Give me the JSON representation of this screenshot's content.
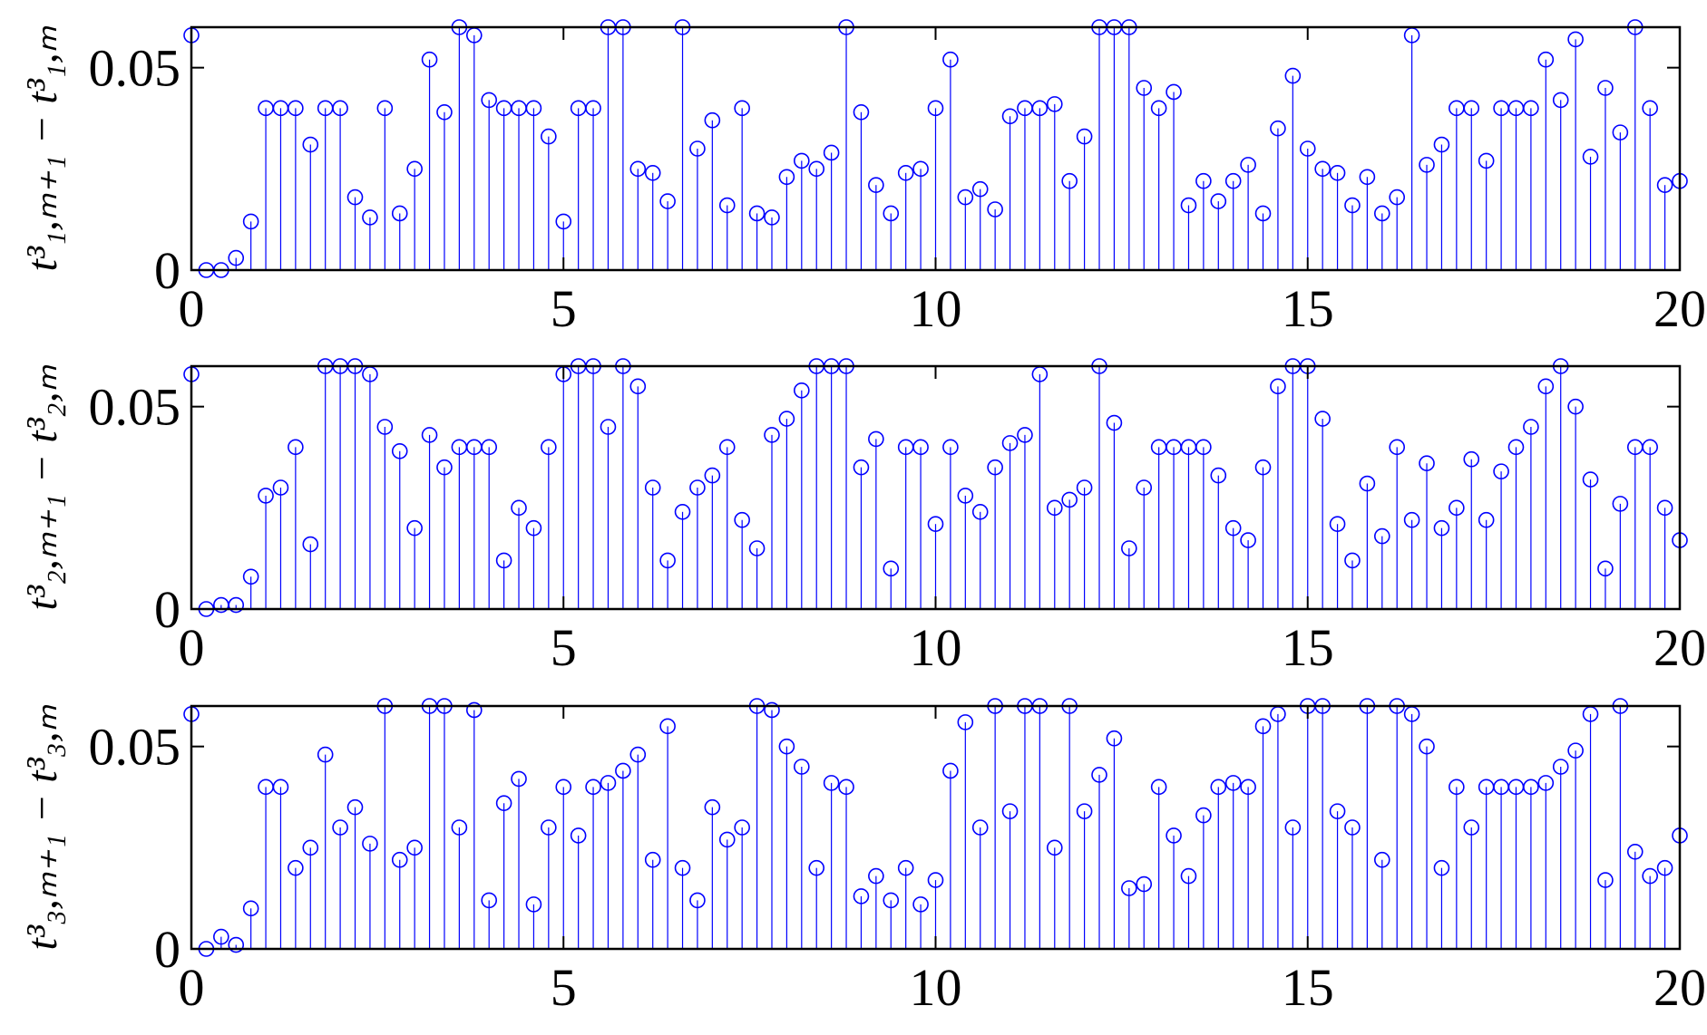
{
  "chart_data": [
    {
      "type": "stem",
      "ylabel": "t³₁,ₘ₊₁ − t³₁,ₘ",
      "color": "#0000ff",
      "xlim": [
        0,
        20
      ],
      "ylim": [
        0,
        0.06
      ],
      "xticks": [
        0,
        5,
        10,
        15,
        20
      ],
      "yticks": [
        0,
        0.05
      ],
      "x": [
        0,
        0.2,
        0.4,
        0.6,
        0.8,
        1,
        1.2,
        1.4,
        1.6,
        1.8,
        2,
        2.2,
        2.4,
        2.6,
        2.8,
        3,
        3.2,
        3.4,
        3.6,
        3.8,
        4,
        4.2,
        4.4,
        4.6,
        4.8,
        5,
        5.2,
        5.4,
        5.6,
        5.8,
        6,
        6.2,
        6.4,
        6.6,
        6.8,
        7,
        7.2,
        7.4,
        7.6,
        7.8,
        8,
        8.2,
        8.4,
        8.6,
        8.8,
        9,
        9.2,
        9.4,
        9.6,
        9.8,
        10,
        10.2,
        10.4,
        10.6,
        10.8,
        11,
        11.2,
        11.4,
        11.6,
        11.8,
        12,
        12.2,
        12.4,
        12.6,
        12.8,
        13,
        13.2,
        13.4,
        13.6,
        13.8,
        14,
        14.2,
        14.4,
        14.6,
        14.8,
        15,
        15.2,
        15.4,
        15.6,
        15.8,
        16,
        16.2,
        16.4,
        16.6,
        16.8,
        17,
        17.2,
        17.4,
        17.6,
        17.8,
        18,
        18.2,
        18.4,
        18.6,
        18.8,
        19,
        19.2,
        19.4,
        19.6,
        19.8,
        20
      ],
      "values": [
        0.058,
        0,
        0,
        0.003,
        0.012,
        0.04,
        0.04,
        0.04,
        0.031,
        0.04,
        0.04,
        0.018,
        0.013,
        0.04,
        0.014,
        0.025,
        0.052,
        0.039,
        0.06,
        0.058,
        0.042,
        0.04,
        0.04,
        0.04,
        0.033,
        0.012,
        0.04,
        0.04,
        0.06,
        0.06,
        0.025,
        0.024,
        0.017,
        0.06,
        0.03,
        0.037,
        0.016,
        0.04,
        0.014,
        0.013,
        0.023,
        0.027,
        0.025,
        0.029,
        0.06,
        0.039,
        0.021,
        0.014,
        0.024,
        0.025,
        0.04,
        0.052,
        0.018,
        0.02,
        0.015,
        0.038,
        0.04,
        0.04,
        0.041,
        0.022,
        0.033,
        0.06,
        0.06,
        0.06,
        0.045,
        0.04,
        0.044,
        0.016,
        0.022,
        0.017,
        0.022,
        0.026,
        0.014,
        0.035,
        0.048,
        0.03,
        0.025,
        0.024,
        0.016,
        0.023,
        0.014,
        0.018,
        0.058,
        0.026,
        0.031,
        0.04,
        0.04,
        0.027,
        0.04,
        0.04,
        0.04,
        0.052,
        0.042,
        0.057,
        0.028,
        0.045,
        0.034,
        0.06,
        0.04,
        0.021,
        0.022
      ]
    },
    {
      "type": "stem",
      "ylabel": "t³₂,ₘ₊₁ − t³₂,ₘ",
      "color": "#0000ff",
      "xlim": [
        0,
        20
      ],
      "ylim": [
        0,
        0.06
      ],
      "xticks": [
        0,
        5,
        10,
        15,
        20
      ],
      "yticks": [
        0,
        0.05
      ],
      "x": [
        0,
        0.2,
        0.4,
        0.6,
        0.8,
        1,
        1.2,
        1.4,
        1.6,
        1.8,
        2,
        2.2,
        2.4,
        2.6,
        2.8,
        3,
        3.2,
        3.4,
        3.6,
        3.8,
        4,
        4.2,
        4.4,
        4.6,
        4.8,
        5,
        5.2,
        5.4,
        5.6,
        5.8,
        6,
        6.2,
        6.4,
        6.6,
        6.8,
        7,
        7.2,
        7.4,
        7.6,
        7.8,
        8,
        8.2,
        8.4,
        8.6,
        8.8,
        9,
        9.2,
        9.4,
        9.6,
        9.8,
        10,
        10.2,
        10.4,
        10.6,
        10.8,
        11,
        11.2,
        11.4,
        11.6,
        11.8,
        12,
        12.2,
        12.4,
        12.6,
        12.8,
        13,
        13.2,
        13.4,
        13.6,
        13.8,
        14,
        14.2,
        14.4,
        14.6,
        14.8,
        15,
        15.2,
        15.4,
        15.6,
        15.8,
        16,
        16.2,
        16.4,
        16.6,
        16.8,
        17,
        17.2,
        17.4,
        17.6,
        17.8,
        18,
        18.2,
        18.4,
        18.6,
        18.8,
        19,
        19.2,
        19.4,
        19.6,
        19.8,
        20
      ],
      "values": [
        0.058,
        0,
        0.001,
        0.001,
        0.008,
        0.028,
        0.03,
        0.04,
        0.016,
        0.06,
        0.06,
        0.06,
        0.058,
        0.045,
        0.039,
        0.02,
        0.043,
        0.035,
        0.04,
        0.04,
        0.04,
        0.012,
        0.025,
        0.02,
        0.04,
        0.058,
        0.06,
        0.06,
        0.045,
        0.06,
        0.055,
        0.03,
        0.012,
        0.024,
        0.03,
        0.033,
        0.04,
        0.022,
        0.015,
        0.043,
        0.047,
        0.054,
        0.06,
        0.06,
        0.06,
        0.035,
        0.042,
        0.01,
        0.04,
        0.04,
        0.021,
        0.04,
        0.028,
        0.024,
        0.035,
        0.041,
        0.043,
        0.058,
        0.025,
        0.027,
        0.03,
        0.06,
        0.046,
        0.015,
        0.03,
        0.04,
        0.04,
        0.04,
        0.04,
        0.033,
        0.02,
        0.017,
        0.035,
        0.055,
        0.06,
        0.06,
        0.047,
        0.021,
        0.012,
        0.031,
        0.018,
        0.04,
        0.022,
        0.036,
        0.02,
        0.025,
        0.037,
        0.022,
        0.034,
        0.04,
        0.045,
        0.055,
        0.06,
        0.05,
        0.032,
        0.01,
        0.026,
        0.04,
        0.04,
        0.025,
        0.017
      ]
    },
    {
      "type": "stem",
      "ylabel": "t³₃,ₘ₊₁ − t³₃,ₘ",
      "color": "#0000ff",
      "xlim": [
        0,
        20
      ],
      "ylim": [
        0,
        0.06
      ],
      "xticks": [
        0,
        5,
        10,
        15,
        20
      ],
      "yticks": [
        0,
        0.05
      ],
      "x": [
        0,
        0.2,
        0.4,
        0.6,
        0.8,
        1,
        1.2,
        1.4,
        1.6,
        1.8,
        2,
        2.2,
        2.4,
        2.6,
        2.8,
        3,
        3.2,
        3.4,
        3.6,
        3.8,
        4,
        4.2,
        4.4,
        4.6,
        4.8,
        5,
        5.2,
        5.4,
        5.6,
        5.8,
        6,
        6.2,
        6.4,
        6.6,
        6.8,
        7,
        7.2,
        7.4,
        7.6,
        7.8,
        8,
        8.2,
        8.4,
        8.6,
        8.8,
        9,
        9.2,
        9.4,
        9.6,
        9.8,
        10,
        10.2,
        10.4,
        10.6,
        10.8,
        11,
        11.2,
        11.4,
        11.6,
        11.8,
        12,
        12.2,
        12.4,
        12.6,
        12.8,
        13,
        13.2,
        13.4,
        13.6,
        13.8,
        14,
        14.2,
        14.4,
        14.6,
        14.8,
        15,
        15.2,
        15.4,
        15.6,
        15.8,
        16,
        16.2,
        16.4,
        16.6,
        16.8,
        17,
        17.2,
        17.4,
        17.6,
        17.8,
        18,
        18.2,
        18.4,
        18.6,
        18.8,
        19,
        19.2,
        19.4,
        19.6,
        19.8,
        20
      ],
      "values": [
        0.058,
        0,
        0.003,
        0.001,
        0.01,
        0.04,
        0.04,
        0.02,
        0.025,
        0.048,
        0.03,
        0.035,
        0.026,
        0.06,
        0.022,
        0.025,
        0.06,
        0.06,
        0.03,
        0.059,
        0.012,
        0.036,
        0.042,
        0.011,
        0.03,
        0.04,
        0.028,
        0.04,
        0.041,
        0.044,
        0.048,
        0.022,
        0.055,
        0.02,
        0.012,
        0.035,
        0.027,
        0.03,
        0.06,
        0.059,
        0.05,
        0.045,
        0.02,
        0.041,
        0.04,
        0.013,
        0.018,
        0.012,
        0.02,
        0.011,
        0.017,
        0.044,
        0.056,
        0.03,
        0.06,
        0.034,
        0.06,
        0.06,
        0.025,
        0.06,
        0.034,
        0.043,
        0.052,
        0.015,
        0.016,
        0.04,
        0.028,
        0.018,
        0.033,
        0.04,
        0.041,
        0.04,
        0.055,
        0.058,
        0.03,
        0.06,
        0.06,
        0.034,
        0.03,
        0.06,
        0.022,
        0.06,
        0.058,
        0.05,
        0.02,
        0.04,
        0.03,
        0.04,
        0.04,
        0.04,
        0.04,
        0.041,
        0.045,
        0.049,
        0.058,
        0.017,
        0.06,
        0.024,
        0.018,
        0.02,
        0.028
      ]
    }
  ]
}
